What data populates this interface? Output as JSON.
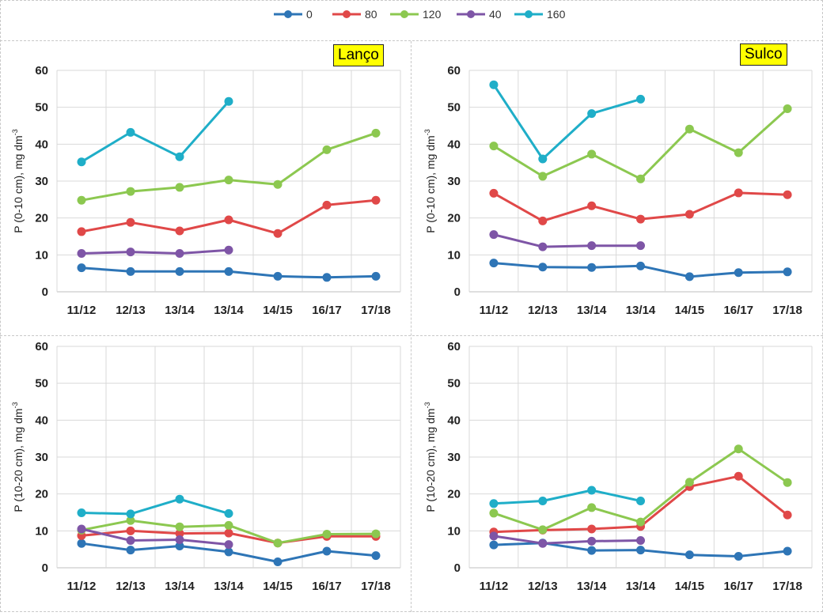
{
  "legend": [
    {
      "name": "0",
      "color": "#2E75B6"
    },
    {
      "name": "80",
      "color": "#E04848"
    },
    {
      "name": "120",
      "color": "#8CC850"
    },
    {
      "name": "40",
      "color": "#7E55A6"
    },
    {
      "name": "160",
      "color": "#1FAEC8"
    }
  ],
  "badges": {
    "lanco": "Lanço",
    "sulco": "Sulco",
    "color": "#FFFF00"
  },
  "chart_data": [
    {
      "type": "line",
      "id": "top-left",
      "title": "Lanço",
      "ylabel": "P (0-10 cm), mg dm",
      "ylabel_sup": "-3",
      "ylim": [
        0,
        60
      ],
      "yticks": [
        0,
        10,
        20,
        30,
        40,
        50,
        60
      ],
      "categories": [
        "11/12",
        "12/13",
        "13/14",
        "13/14",
        "14/15",
        "16/17",
        "17/18"
      ],
      "series": [
        {
          "name": "0",
          "values": [
            6.5,
            5.5,
            5.5,
            5.5,
            4.2,
            3.9,
            4.2
          ]
        },
        {
          "name": "80",
          "values": [
            16.3,
            18.8,
            16.5,
            19.5,
            15.8,
            23.5,
            24.8
          ]
        },
        {
          "name": "120",
          "values": [
            24.8,
            27.2,
            28.3,
            30.3,
            29.1,
            38.5,
            43.0
          ]
        },
        {
          "name": "40",
          "values": [
            10.4,
            10.8,
            10.4,
            11.3,
            null,
            null,
            null
          ]
        },
        {
          "name": "160",
          "values": [
            35.2,
            43.2,
            36.6,
            51.6,
            null,
            null,
            null
          ]
        }
      ]
    },
    {
      "type": "line",
      "id": "top-right",
      "title": "Sulco",
      "ylabel": "P (0-10 cm), mg dm",
      "ylabel_sup": "-3",
      "ylim": [
        0,
        60
      ],
      "yticks": [
        0,
        10,
        20,
        30,
        40,
        50,
        60
      ],
      "categories": [
        "11/12",
        "12/13",
        "13/14",
        "13/14",
        "14/15",
        "16/17",
        "17/18"
      ],
      "series": [
        {
          "name": "0",
          "values": [
            7.8,
            6.7,
            6.6,
            7.0,
            4.1,
            5.2,
            5.4
          ]
        },
        {
          "name": "80",
          "values": [
            26.7,
            19.2,
            23.3,
            19.7,
            21.0,
            26.8,
            26.3
          ]
        },
        {
          "name": "120",
          "values": [
            39.5,
            31.3,
            37.3,
            30.6,
            44.1,
            37.7,
            49.6
          ]
        },
        {
          "name": "40",
          "values": [
            15.5,
            12.2,
            12.5,
            12.5,
            null,
            null,
            null
          ]
        },
        {
          "name": "160",
          "values": [
            56.1,
            36.0,
            48.3,
            52.2,
            null,
            null,
            null
          ]
        }
      ]
    },
    {
      "type": "line",
      "id": "bottom-left",
      "title": "",
      "ylabel": "P (10-20 cm), mg dm",
      "ylabel_sup": "-3",
      "ylim": [
        0,
        60
      ],
      "yticks": [
        0,
        10,
        20,
        30,
        40,
        50,
        60
      ],
      "categories": [
        "11/12",
        "12/13",
        "13/14",
        "13/14",
        "14/15",
        "16/17",
        "17/18"
      ],
      "series": [
        {
          "name": "0",
          "values": [
            6.6,
            4.8,
            5.9,
            4.3,
            1.6,
            4.5,
            3.3
          ]
        },
        {
          "name": "80",
          "values": [
            8.7,
            10.0,
            9.3,
            9.4,
            6.7,
            8.5,
            8.5
          ]
        },
        {
          "name": "120",
          "values": [
            10.2,
            12.8,
            11.1,
            11.5,
            6.7,
            9.1,
            9.2
          ]
        },
        {
          "name": "40",
          "values": [
            10.5,
            7.4,
            7.6,
            6.3,
            null,
            null,
            null
          ]
        },
        {
          "name": "160",
          "values": [
            14.9,
            14.6,
            18.6,
            14.7,
            null,
            null,
            null
          ]
        }
      ]
    },
    {
      "type": "line",
      "id": "bottom-right",
      "title": "",
      "ylabel": "P (10-20 cm), mg dm",
      "ylabel_sup": "-3",
      "ylim": [
        0,
        60
      ],
      "yticks": [
        0,
        10,
        20,
        30,
        40,
        50,
        60
      ],
      "categories": [
        "11/12",
        "12/13",
        "13/14",
        "13/14",
        "14/15",
        "16/17",
        "17/18"
      ],
      "series": [
        {
          "name": "0",
          "values": [
            6.2,
            6.7,
            4.7,
            4.8,
            3.5,
            3.1,
            4.5
          ]
        },
        {
          "name": "80",
          "values": [
            9.7,
            10.2,
            10.5,
            11.2,
            22.0,
            24.8,
            14.3
          ]
        },
        {
          "name": "120",
          "values": [
            14.8,
            10.3,
            16.3,
            12.4,
            23.2,
            32.2,
            23.1
          ]
        },
        {
          "name": "40",
          "values": [
            8.6,
            6.6,
            7.2,
            7.4,
            null,
            null,
            null
          ]
        },
        {
          "name": "160",
          "values": [
            17.4,
            18.1,
            21.0,
            18.1,
            null,
            null,
            null
          ]
        }
      ]
    }
  ]
}
